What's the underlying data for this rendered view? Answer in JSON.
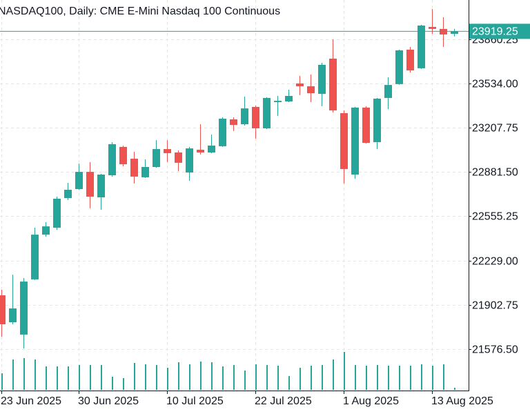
{
  "chart_data": {
    "type": "candlestick",
    "title": "NASDAQ100, Daily:  CME E-Mini Nasdaq 100 Continuous",
    "categories": [
      "23 Jun 2025",
      null,
      null,
      null,
      null,
      null,
      null,
      "30 Jun 2025",
      null,
      null,
      null,
      null,
      null,
      null,
      null,
      "10 Jul 2025",
      null,
      null,
      null,
      null,
      null,
      null,
      null,
      "22 Jul 2025",
      null,
      null,
      null,
      null,
      null,
      null,
      null,
      "1 Aug 2025",
      null,
      null,
      null,
      null,
      null,
      null,
      null,
      "13 Aug 2025",
      null,
      null
    ],
    "open": [
      21972.6,
      21774,
      21683,
      22090,
      22420,
      22471,
      22690,
      22756,
      22883,
      22695,
      22858,
      23067,
      22980,
      22843,
      22919,
      23051,
      23026,
      22878,
      23046,
      23026,
      23072,
      23270,
      23234,
      23362,
      23204,
      23397,
      23402,
      23535,
      23514,
      23458,
      23718,
      23316,
      22863,
      23357,
      23102,
      23428,
      23530,
      23784,
      23647,
      23952,
      23937,
      23901
    ],
    "high": [
      22013,
      22125,
      22100,
      22471,
      22512,
      22700,
      22802,
      22944,
      22955,
      22868,
      23102,
      23077,
      23031,
      22975,
      23117,
      23117,
      23041,
      23067,
      23234,
      23158,
      23285,
      23285,
      23438,
      23372,
      23433,
      23443,
      23489,
      23591,
      23601,
      23687,
      23860,
      23336,
      23362,
      23367,
      23428,
      23580,
      23784,
      23804,
      23967,
      24084,
      24023,
      23937
    ],
    "low": [
      21667,
      21759,
      21581,
      22085,
      22405,
      22456,
      22675,
      22751,
      22614,
      22604,
      22848,
      22924,
      22797,
      22838,
      22914,
      22955,
      22888,
      22817,
      23011,
      23021,
      23067,
      23184,
      23224,
      23128,
      23199,
      23295,
      23397,
      23448,
      23397,
      23367,
      23321,
      22797,
      22832,
      23092,
      23051,
      23346,
      23525,
      23616,
      23642,
      23901,
      23804,
      23881
    ],
    "close": [
      21759,
      21876,
      22074,
      22420,
      22481,
      22685,
      22751,
      22883,
      22700,
      22863,
      23087,
      22939,
      22848,
      22919,
      23051,
      23021,
      22950,
      23056,
      23026,
      23077,
      23275,
      23229,
      23351,
      23204,
      23428,
      23407,
      23443,
      23514,
      23463,
      23672,
      23336,
      22904,
      23357,
      23097,
      23423,
      23524,
      23779,
      23631,
      23962,
      23937,
      23896,
      23919.25
    ],
    "volume": [
      24,
      44,
      46,
      44,
      34,
      34,
      34,
      36,
      36,
      36,
      19,
      17,
      39,
      37,
      36,
      32,
      40,
      37,
      41,
      40,
      34,
      36,
      28,
      37,
      36,
      35,
      20,
      32,
      35,
      36,
      44,
      55,
      36,
      35,
      36,
      35,
      35,
      35,
      37,
      35,
      37,
      3
    ],
    "up_color": "#26a69a",
    "down_color": "#ef5350",
    "volume_color": "#26a69a",
    "current_price": {
      "value": 23919.25,
      "label": "23919.25"
    },
    "ylim": [
      21275.5,
      24150.3
    ],
    "yticks": [
      23860.25,
      {
        "value": 23534,
        "label": "23534.00"
      },
      23207.75,
      {
        "value": 22881.5,
        "label": "22881.50"
      },
      22555.25,
      {
        "value": 22229,
        "label": "22229.00"
      },
      21902.75,
      {
        "value": 21576.5,
        "label": "21576.50"
      }
    ],
    "grid": true
  }
}
